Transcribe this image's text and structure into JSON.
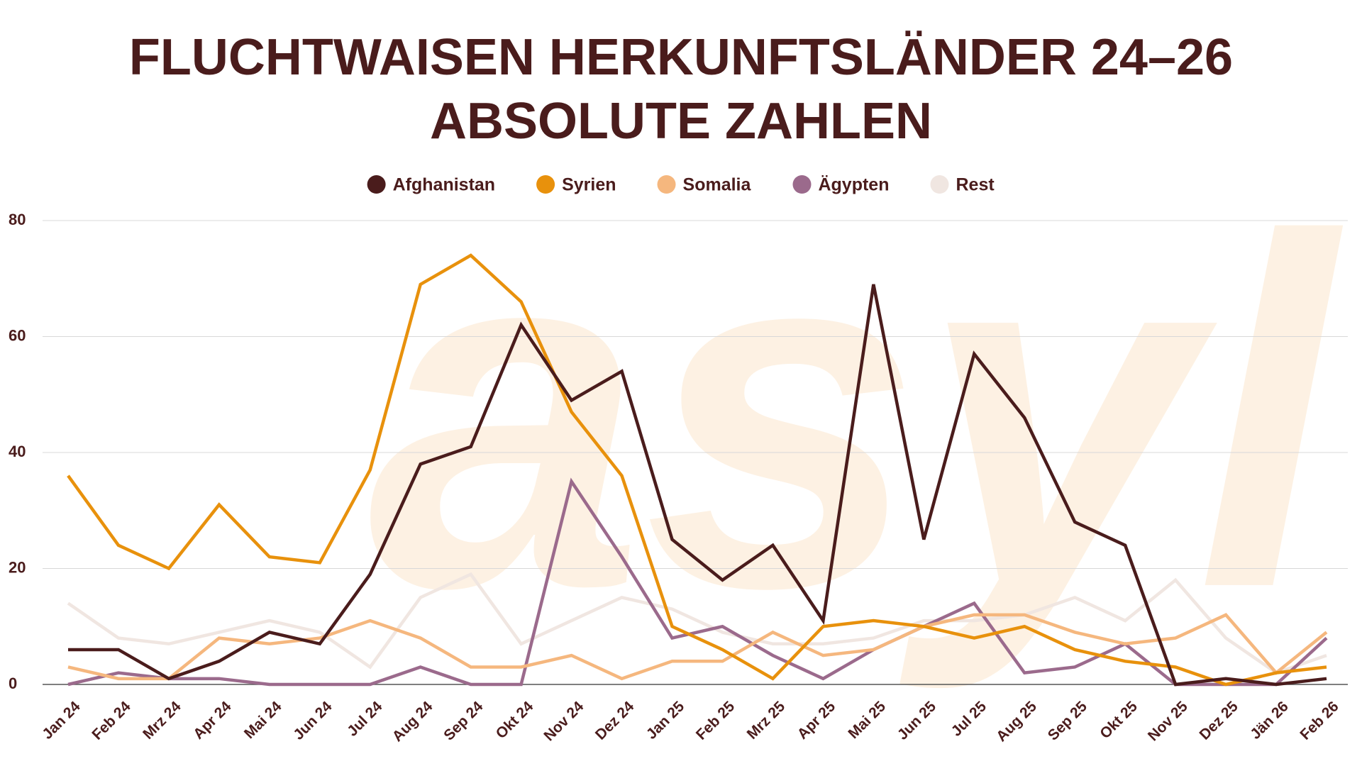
{
  "chart_data": {
    "type": "line",
    "title": "FLUCHTWAISEN HERKUNFTSLÄNDER 24–26",
    "subtitle": "ABSOLUTE ZAHLEN",
    "watermark": "asyl",
    "categories": [
      "Jan 24",
      "Feb 24",
      "Mrz 24",
      "Apr 24",
      "Mai 24",
      "Jun 24",
      "Jul 24",
      "Aug 24",
      "Sep 24",
      "Okt 24",
      "Nov 24",
      "Dez 24",
      "Jan 25",
      "Feb 25",
      "Mrz 25",
      "Apr 25",
      "Mai 25",
      "Jun 25",
      "Jul 25",
      "Aug 25",
      "Sep 25",
      "Okt 25",
      "Nov 25",
      "Dez 25",
      "Jän 26",
      "Feb 26"
    ],
    "series": [
      {
        "name": "Afghanistan",
        "color": "#4a1c1c",
        "values": [
          6,
          6,
          1,
          4,
          9,
          7,
          19,
          38,
          41,
          62,
          49,
          54,
          25,
          18,
          24,
          11,
          69,
          25,
          57,
          46,
          28,
          24,
          0,
          1,
          0,
          1
        ]
      },
      {
        "name": "Syrien",
        "color": "#e8910c",
        "values": [
          36,
          24,
          20,
          31,
          22,
          21,
          37,
          69,
          74,
          66,
          47,
          36,
          10,
          6,
          1,
          10,
          11,
          10,
          8,
          10,
          6,
          4,
          3,
          0,
          2,
          3
        ]
      },
      {
        "name": "Somalia",
        "color": "#f5b77e",
        "values": [
          3,
          1,
          1,
          8,
          7,
          8,
          11,
          8,
          3,
          3,
          5,
          1,
          4,
          4,
          9,
          5,
          6,
          10,
          12,
          12,
          9,
          7,
          8,
          12,
          2,
          9
        ]
      },
      {
        "name": "Ägypten",
        "color": "#9b6a8c",
        "values": [
          0,
          2,
          1,
          1,
          0,
          0,
          0,
          3,
          0,
          0,
          35,
          22,
          8,
          10,
          5,
          1,
          6,
          10,
          14,
          2,
          3,
          7,
          0,
          0,
          0,
          8
        ]
      },
      {
        "name": "Rest",
        "color": "#f0e6e1",
        "values": [
          14,
          8,
          7,
          9,
          11,
          9,
          3,
          15,
          19,
          7,
          11,
          15,
          13,
          9,
          7,
          7,
          8,
          11,
          11,
          12,
          15,
          11,
          18,
          8,
          2,
          5
        ]
      }
    ],
    "ylim": [
      0,
      80
    ],
    "yticks": [
      0,
      20,
      40,
      60,
      80
    ],
    "grid": true,
    "legend": "top"
  }
}
